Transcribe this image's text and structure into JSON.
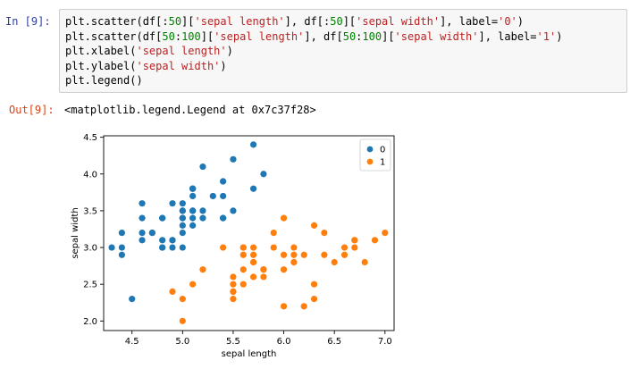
{
  "cell": {
    "in_prompt": "In  [9]:",
    "out_prompt": "Out[9]:",
    "code_lines": [
      "plt.scatter(df[:50]['sepal length'], df[:50]['sepal width'], label='0')",
      "plt.scatter(df[50:100]['sepal length'], df[50:100]['sepal width'], label='1')",
      "plt.xlabel('sepal length')",
      "plt.ylabel('sepal width')",
      "plt.legend()"
    ],
    "output_text": "<matplotlib.legend.Legend at 0x7c37f28>"
  },
  "chart_data": {
    "type": "scatter",
    "xlabel": "sepal length",
    "ylabel": "sepal width",
    "xlim": [
      4.22,
      7.09
    ],
    "ylim": [
      1.87,
      4.52
    ],
    "xticks": [
      "4.5",
      "5.0",
      "5.5",
      "6.0",
      "6.5",
      "7.0"
    ],
    "yticks": [
      "2.0",
      "2.5",
      "3.0",
      "3.5",
      "4.0",
      "4.5"
    ],
    "legend_position": "top-right",
    "series": [
      {
        "name": "0",
        "color": "#1f77b4",
        "points": [
          [
            5.1,
            3.5
          ],
          [
            4.9,
            3.0
          ],
          [
            4.7,
            3.2
          ],
          [
            4.6,
            3.1
          ],
          [
            5.0,
            3.6
          ],
          [
            5.4,
            3.9
          ],
          [
            4.6,
            3.4
          ],
          [
            5.0,
            3.4
          ],
          [
            4.4,
            2.9
          ],
          [
            4.9,
            3.1
          ],
          [
            5.4,
            3.7
          ],
          [
            4.8,
            3.4
          ],
          [
            4.8,
            3.0
          ],
          [
            4.3,
            3.0
          ],
          [
            5.8,
            4.0
          ],
          [
            5.7,
            4.4
          ],
          [
            5.4,
            3.9
          ],
          [
            5.1,
            3.5
          ],
          [
            5.7,
            3.8
          ],
          [
            5.1,
            3.8
          ],
          [
            5.4,
            3.4
          ],
          [
            5.1,
            3.7
          ],
          [
            4.6,
            3.6
          ],
          [
            5.1,
            3.3
          ],
          [
            4.8,
            3.4
          ],
          [
            5.0,
            3.0
          ],
          [
            5.0,
            3.4
          ],
          [
            5.2,
            3.5
          ],
          [
            5.2,
            3.4
          ],
          [
            4.7,
            3.2
          ],
          [
            4.8,
            3.1
          ],
          [
            5.4,
            3.4
          ],
          [
            5.2,
            4.1
          ],
          [
            5.5,
            4.2
          ],
          [
            4.9,
            3.1
          ],
          [
            5.0,
            3.2
          ],
          [
            5.5,
            3.5
          ],
          [
            4.9,
            3.6
          ],
          [
            4.4,
            3.0
          ],
          [
            5.1,
            3.4
          ],
          [
            5.0,
            3.5
          ],
          [
            4.5,
            2.3
          ],
          [
            4.4,
            3.2
          ],
          [
            5.0,
            3.5
          ],
          [
            5.1,
            3.8
          ],
          [
            4.8,
            3.0
          ],
          [
            5.1,
            3.8
          ],
          [
            4.6,
            3.2
          ],
          [
            5.3,
            3.7
          ],
          [
            5.0,
            3.3
          ]
        ]
      },
      {
        "name": "1",
        "color": "#ff7f0e",
        "points": [
          [
            7.0,
            3.2
          ],
          [
            6.4,
            3.2
          ],
          [
            6.9,
            3.1
          ],
          [
            5.5,
            2.3
          ],
          [
            6.5,
            2.8
          ],
          [
            5.7,
            2.8
          ],
          [
            6.3,
            3.3
          ],
          [
            4.9,
            2.4
          ],
          [
            6.6,
            2.9
          ],
          [
            5.2,
            2.7
          ],
          [
            5.0,
            2.0
          ],
          [
            5.9,
            3.0
          ],
          [
            6.0,
            2.2
          ],
          [
            6.1,
            2.9
          ],
          [
            5.6,
            2.9
          ],
          [
            6.7,
            3.1
          ],
          [
            5.6,
            3.0
          ],
          [
            5.8,
            2.7
          ],
          [
            6.2,
            2.2
          ],
          [
            5.6,
            2.5
          ],
          [
            5.9,
            3.2
          ],
          [
            6.1,
            2.8
          ],
          [
            6.3,
            2.5
          ],
          [
            6.1,
            2.8
          ],
          [
            6.4,
            2.9
          ],
          [
            6.6,
            3.0
          ],
          [
            6.8,
            2.8
          ],
          [
            6.7,
            3.0
          ],
          [
            6.0,
            2.9
          ],
          [
            5.7,
            2.6
          ],
          [
            5.5,
            2.4
          ],
          [
            5.5,
            2.4
          ],
          [
            5.8,
            2.7
          ],
          [
            6.0,
            2.7
          ],
          [
            5.4,
            3.0
          ],
          [
            6.0,
            3.4
          ],
          [
            6.7,
            3.1
          ],
          [
            6.3,
            2.3
          ],
          [
            5.6,
            3.0
          ],
          [
            5.5,
            2.5
          ],
          [
            5.5,
            2.6
          ],
          [
            6.1,
            3.0
          ],
          [
            5.8,
            2.6
          ],
          [
            5.0,
            2.3
          ],
          [
            5.6,
            2.7
          ],
          [
            5.7,
            3.0
          ],
          [
            5.7,
            2.9
          ],
          [
            6.2,
            2.9
          ],
          [
            5.1,
            2.5
          ],
          [
            5.7,
            2.8
          ]
        ]
      }
    ]
  }
}
